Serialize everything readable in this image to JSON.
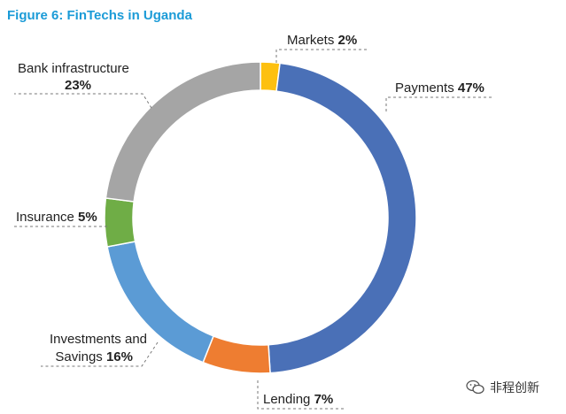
{
  "title": "Figure 6: FinTechs in Uganda",
  "watermark": {
    "text": "非程创新",
    "icon": "wechat-icon"
  },
  "chart_data": {
    "type": "pie",
    "donut": true,
    "title": "Figure 6: FinTechs in Uganda",
    "segments": [
      {
        "name": "Markets",
        "value": 2,
        "label": "2%",
        "color": "#fdc010"
      },
      {
        "name": "Payments",
        "value": 47,
        "label": "47%",
        "color": "#4a70b7"
      },
      {
        "name": "Lending",
        "value": 7,
        "label": "7%",
        "color": "#ee7d31"
      },
      {
        "name": "Investments and Savings",
        "value": 16,
        "label": "16%",
        "color": "#5b9bd5"
      },
      {
        "name": "Insurance",
        "value": 5,
        "label": "5%",
        "color": "#6fad46"
      },
      {
        "name": "Bank infrastructure",
        "value": 23,
        "label": "23%",
        "color": "#a5a5a5"
      }
    ]
  }
}
